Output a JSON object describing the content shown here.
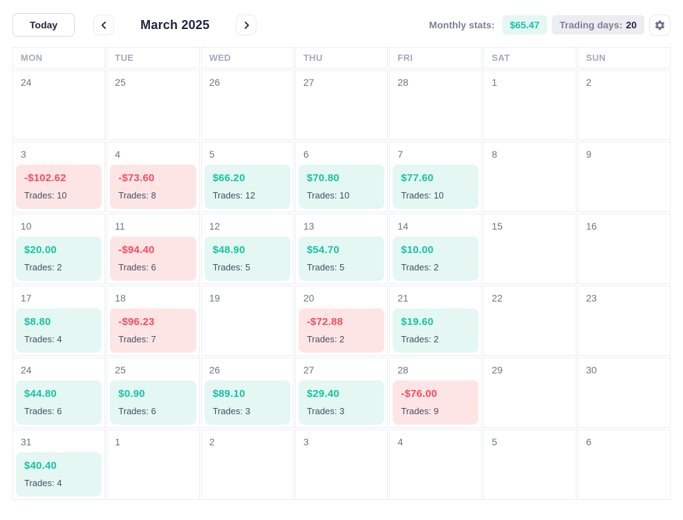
{
  "colors": {
    "profit_text": "#17C3A4",
    "profit_bg": "#E4F7F2",
    "loss_text": "#FB4B5C",
    "loss_bg": "#FDE5E6",
    "title_text": "#20263C",
    "muted_text": "#7B8095",
    "grid_border": "#ECEDF2"
  },
  "header": {
    "today_label": "Today",
    "prev_icon": "chevron-left",
    "next_icon": "chevron-right",
    "month_title": "March 2025",
    "monthly_stats_label": "Monthly stats:",
    "monthly_total": "$65.47",
    "trading_days_label": "Trading days:",
    "trading_days_value": "20",
    "settings_icon": "gear"
  },
  "calendar": {
    "day_headers": [
      "MON",
      "TUE",
      "WED",
      "THU",
      "FRI",
      "SAT",
      "SUN"
    ],
    "weeks": [
      [
        {
          "date": "24"
        },
        {
          "date": "25"
        },
        {
          "date": "26"
        },
        {
          "date": "27"
        },
        {
          "date": "28"
        },
        {
          "date": "1"
        },
        {
          "date": "2"
        }
      ],
      [
        {
          "date": "3",
          "pnl": "-$102.62",
          "trades": "Trades: 10",
          "status": "loss"
        },
        {
          "date": "4",
          "pnl": "-$73.60",
          "trades": "Trades: 8",
          "status": "loss"
        },
        {
          "date": "5",
          "pnl": "$66.20",
          "trades": "Trades: 12",
          "status": "profit"
        },
        {
          "date": "6",
          "pnl": "$70.80",
          "trades": "Trades: 10",
          "status": "profit"
        },
        {
          "date": "7",
          "pnl": "$77.60",
          "trades": "Trades: 10",
          "status": "profit"
        },
        {
          "date": "8"
        },
        {
          "date": "9"
        }
      ],
      [
        {
          "date": "10",
          "pnl": "$20.00",
          "trades": "Trades: 2",
          "status": "profit"
        },
        {
          "date": "11",
          "pnl": "-$94.40",
          "trades": "Trades: 6",
          "status": "loss"
        },
        {
          "date": "12",
          "pnl": "$48.90",
          "trades": "Trades: 5",
          "status": "profit"
        },
        {
          "date": "13",
          "pnl": "$54.70",
          "trades": "Trades: 5",
          "status": "profit"
        },
        {
          "date": "14",
          "pnl": "$10.00",
          "trades": "Trades: 2",
          "status": "profit"
        },
        {
          "date": "15"
        },
        {
          "date": "16"
        }
      ],
      [
        {
          "date": "17",
          "pnl": "$8.80",
          "trades": "Trades: 4",
          "status": "profit"
        },
        {
          "date": "18",
          "pnl": "-$96.23",
          "trades": "Trades: 7",
          "status": "loss"
        },
        {
          "date": "19"
        },
        {
          "date": "20",
          "pnl": "-$72.88",
          "trades": "Trades: 2",
          "status": "loss"
        },
        {
          "date": "21",
          "pnl": "$19.60",
          "trades": "Trades: 2",
          "status": "profit"
        },
        {
          "date": "22"
        },
        {
          "date": "23"
        }
      ],
      [
        {
          "date": "24",
          "pnl": "$44.80",
          "trades": "Trades: 6",
          "status": "profit"
        },
        {
          "date": "25",
          "pnl": "$0.90",
          "trades": "Trades: 6",
          "status": "profit"
        },
        {
          "date": "26",
          "pnl": "$89.10",
          "trades": "Trades: 3",
          "status": "profit"
        },
        {
          "date": "27",
          "pnl": "$29.40",
          "trades": "Trades: 3",
          "status": "profit"
        },
        {
          "date": "28",
          "pnl": "-$76.00",
          "trades": "Trades: 9",
          "status": "loss"
        },
        {
          "date": "29"
        },
        {
          "date": "30"
        }
      ],
      [
        {
          "date": "31",
          "pnl": "$40.40",
          "trades": "Trades: 4",
          "status": "profit"
        },
        {
          "date": "1"
        },
        {
          "date": "2"
        },
        {
          "date": "3"
        },
        {
          "date": "4"
        },
        {
          "date": "5"
        },
        {
          "date": "6"
        }
      ]
    ]
  }
}
